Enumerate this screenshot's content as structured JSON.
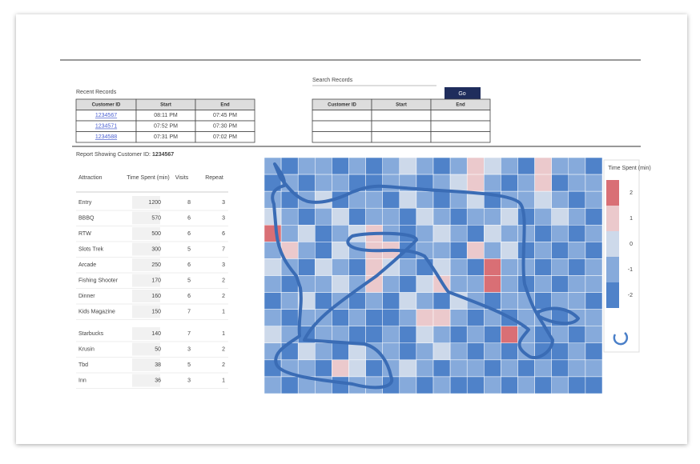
{
  "recent": {
    "title": "Recent Records",
    "headers": [
      "Customer ID",
      "Start",
      "End"
    ],
    "rows": [
      [
        "1234567",
        "08:11 PM",
        "07:45 PM"
      ],
      [
        "1234571",
        "07:52 PM",
        "07:30 PM"
      ],
      [
        "1234588",
        "07:31 PM",
        "07:02 PM"
      ]
    ]
  },
  "search": {
    "label": "Search Records",
    "button": "Go",
    "headers": [
      "Customer ID",
      "Start",
      "End"
    ]
  },
  "report": {
    "title": "Report Showing Customer ID:",
    "customer": "1234567",
    "headers": [
      "Attraction",
      "Time Spent (min)",
      "Visits",
      "Repeat"
    ],
    "rows": [
      [
        "Entry",
        1200,
        8,
        3
      ],
      [
        "BBBQ",
        570,
        6,
        3
      ],
      [
        "RTW",
        500,
        6,
        6
      ],
      [
        "Slots Trek",
        300,
        5,
        7
      ],
      [
        "Arcade",
        250,
        6,
        3
      ],
      [
        "Fishing Shooter",
        170,
        5,
        2
      ],
      [
        "Dinner",
        160,
        6,
        2
      ],
      [
        "Kids Magazine",
        150,
        7,
        1
      ],
      [
        "Starbucks",
        140,
        7,
        1
      ],
      [
        "Krusin",
        50,
        3,
        2
      ],
      [
        "Tbd",
        38,
        5,
        2
      ],
      [
        "Inn",
        36,
        3,
        1
      ]
    ]
  },
  "heatmap": {
    "legend_title": "Time Spent (min)",
    "scale": {
      "levels": [
        -2,
        -1,
        0,
        1,
        2
      ],
      "colors": [
        "#4f82c9",
        "#86aadb",
        "#cdd9ea",
        "#ebc9cc",
        "#d96f75"
      ]
    },
    "values": [
      [
        -1,
        -2,
        -1,
        -1,
        -2,
        -1,
        -2,
        -1,
        0,
        -1,
        -2,
        -1,
        1,
        0,
        -1,
        -2,
        1,
        -1,
        -1,
        -2
      ],
      [
        -2,
        -1,
        -2,
        -1,
        -1,
        -2,
        -2,
        -1,
        -1,
        -2,
        -1,
        0,
        1,
        -1,
        -2,
        -1,
        1,
        -2,
        -1,
        -1
      ],
      [
        -1,
        -2,
        -1,
        0,
        -2,
        -1,
        -1,
        -2,
        0,
        -1,
        -2,
        -1,
        0,
        -2,
        -1,
        -1,
        0,
        -1,
        -2,
        -1
      ],
      [
        0,
        -1,
        -2,
        -1,
        0,
        -2,
        -1,
        -1,
        -2,
        0,
        -1,
        -2,
        -1,
        -1,
        0,
        -2,
        -1,
        0,
        -1,
        -2
      ],
      [
        2,
        -1,
        0,
        -2,
        -1,
        0,
        1,
        -1,
        -2,
        -1,
        0,
        -1,
        -2,
        0,
        -1,
        -1,
        -2,
        -1,
        -2,
        -1
      ],
      [
        -1,
        1,
        -1,
        -2,
        0,
        -1,
        1,
        1,
        -2,
        -1,
        -1,
        -2,
        1,
        -1,
        0,
        -2,
        -1,
        -2,
        -1,
        -2
      ],
      [
        0,
        -1,
        -2,
        0,
        -1,
        -2,
        1,
        0,
        -1,
        -2,
        0,
        -1,
        -2,
        2,
        -1,
        -1,
        -2,
        -1,
        -2,
        -1
      ],
      [
        -1,
        -2,
        -1,
        -1,
        0,
        -1,
        1,
        -1,
        -2,
        0,
        1,
        -1,
        -1,
        2,
        -1,
        -2,
        -1,
        -2,
        -1,
        -1
      ],
      [
        -2,
        -1,
        0,
        -2,
        -1,
        -2,
        -1,
        -2,
        0,
        -1,
        -2,
        0,
        -1,
        -2,
        -1,
        -1,
        -2,
        -1,
        -1,
        -2
      ],
      [
        -1,
        -2,
        -1,
        -1,
        -2,
        -1,
        -2,
        -2,
        -1,
        1,
        1,
        -1,
        -2,
        -1,
        -2,
        -1,
        -1,
        -2,
        -1,
        -1
      ],
      [
        0,
        -1,
        -2,
        -1,
        -1,
        -2,
        -2,
        -1,
        -2,
        0,
        -1,
        -2,
        -1,
        -2,
        2,
        -1,
        -2,
        -1,
        -2,
        -1
      ],
      [
        -1,
        -2,
        0,
        -1,
        -2,
        0,
        -1,
        -1,
        -2,
        -1,
        0,
        -1,
        -2,
        -1,
        -2,
        -1,
        -2,
        -2,
        -1,
        -2
      ],
      [
        -2,
        -1,
        -1,
        -2,
        1,
        0,
        -2,
        -1,
        0,
        -1,
        -2,
        -1,
        -1,
        -2,
        -1,
        -2,
        -1,
        -2,
        -1,
        -1
      ],
      [
        -1,
        -2,
        -1,
        -1,
        -2,
        -1,
        -1,
        -2,
        -1,
        -2,
        -1,
        -2,
        -2,
        -1,
        -2,
        -1,
        -2,
        -1,
        -2,
        -2
      ]
    ]
  }
}
